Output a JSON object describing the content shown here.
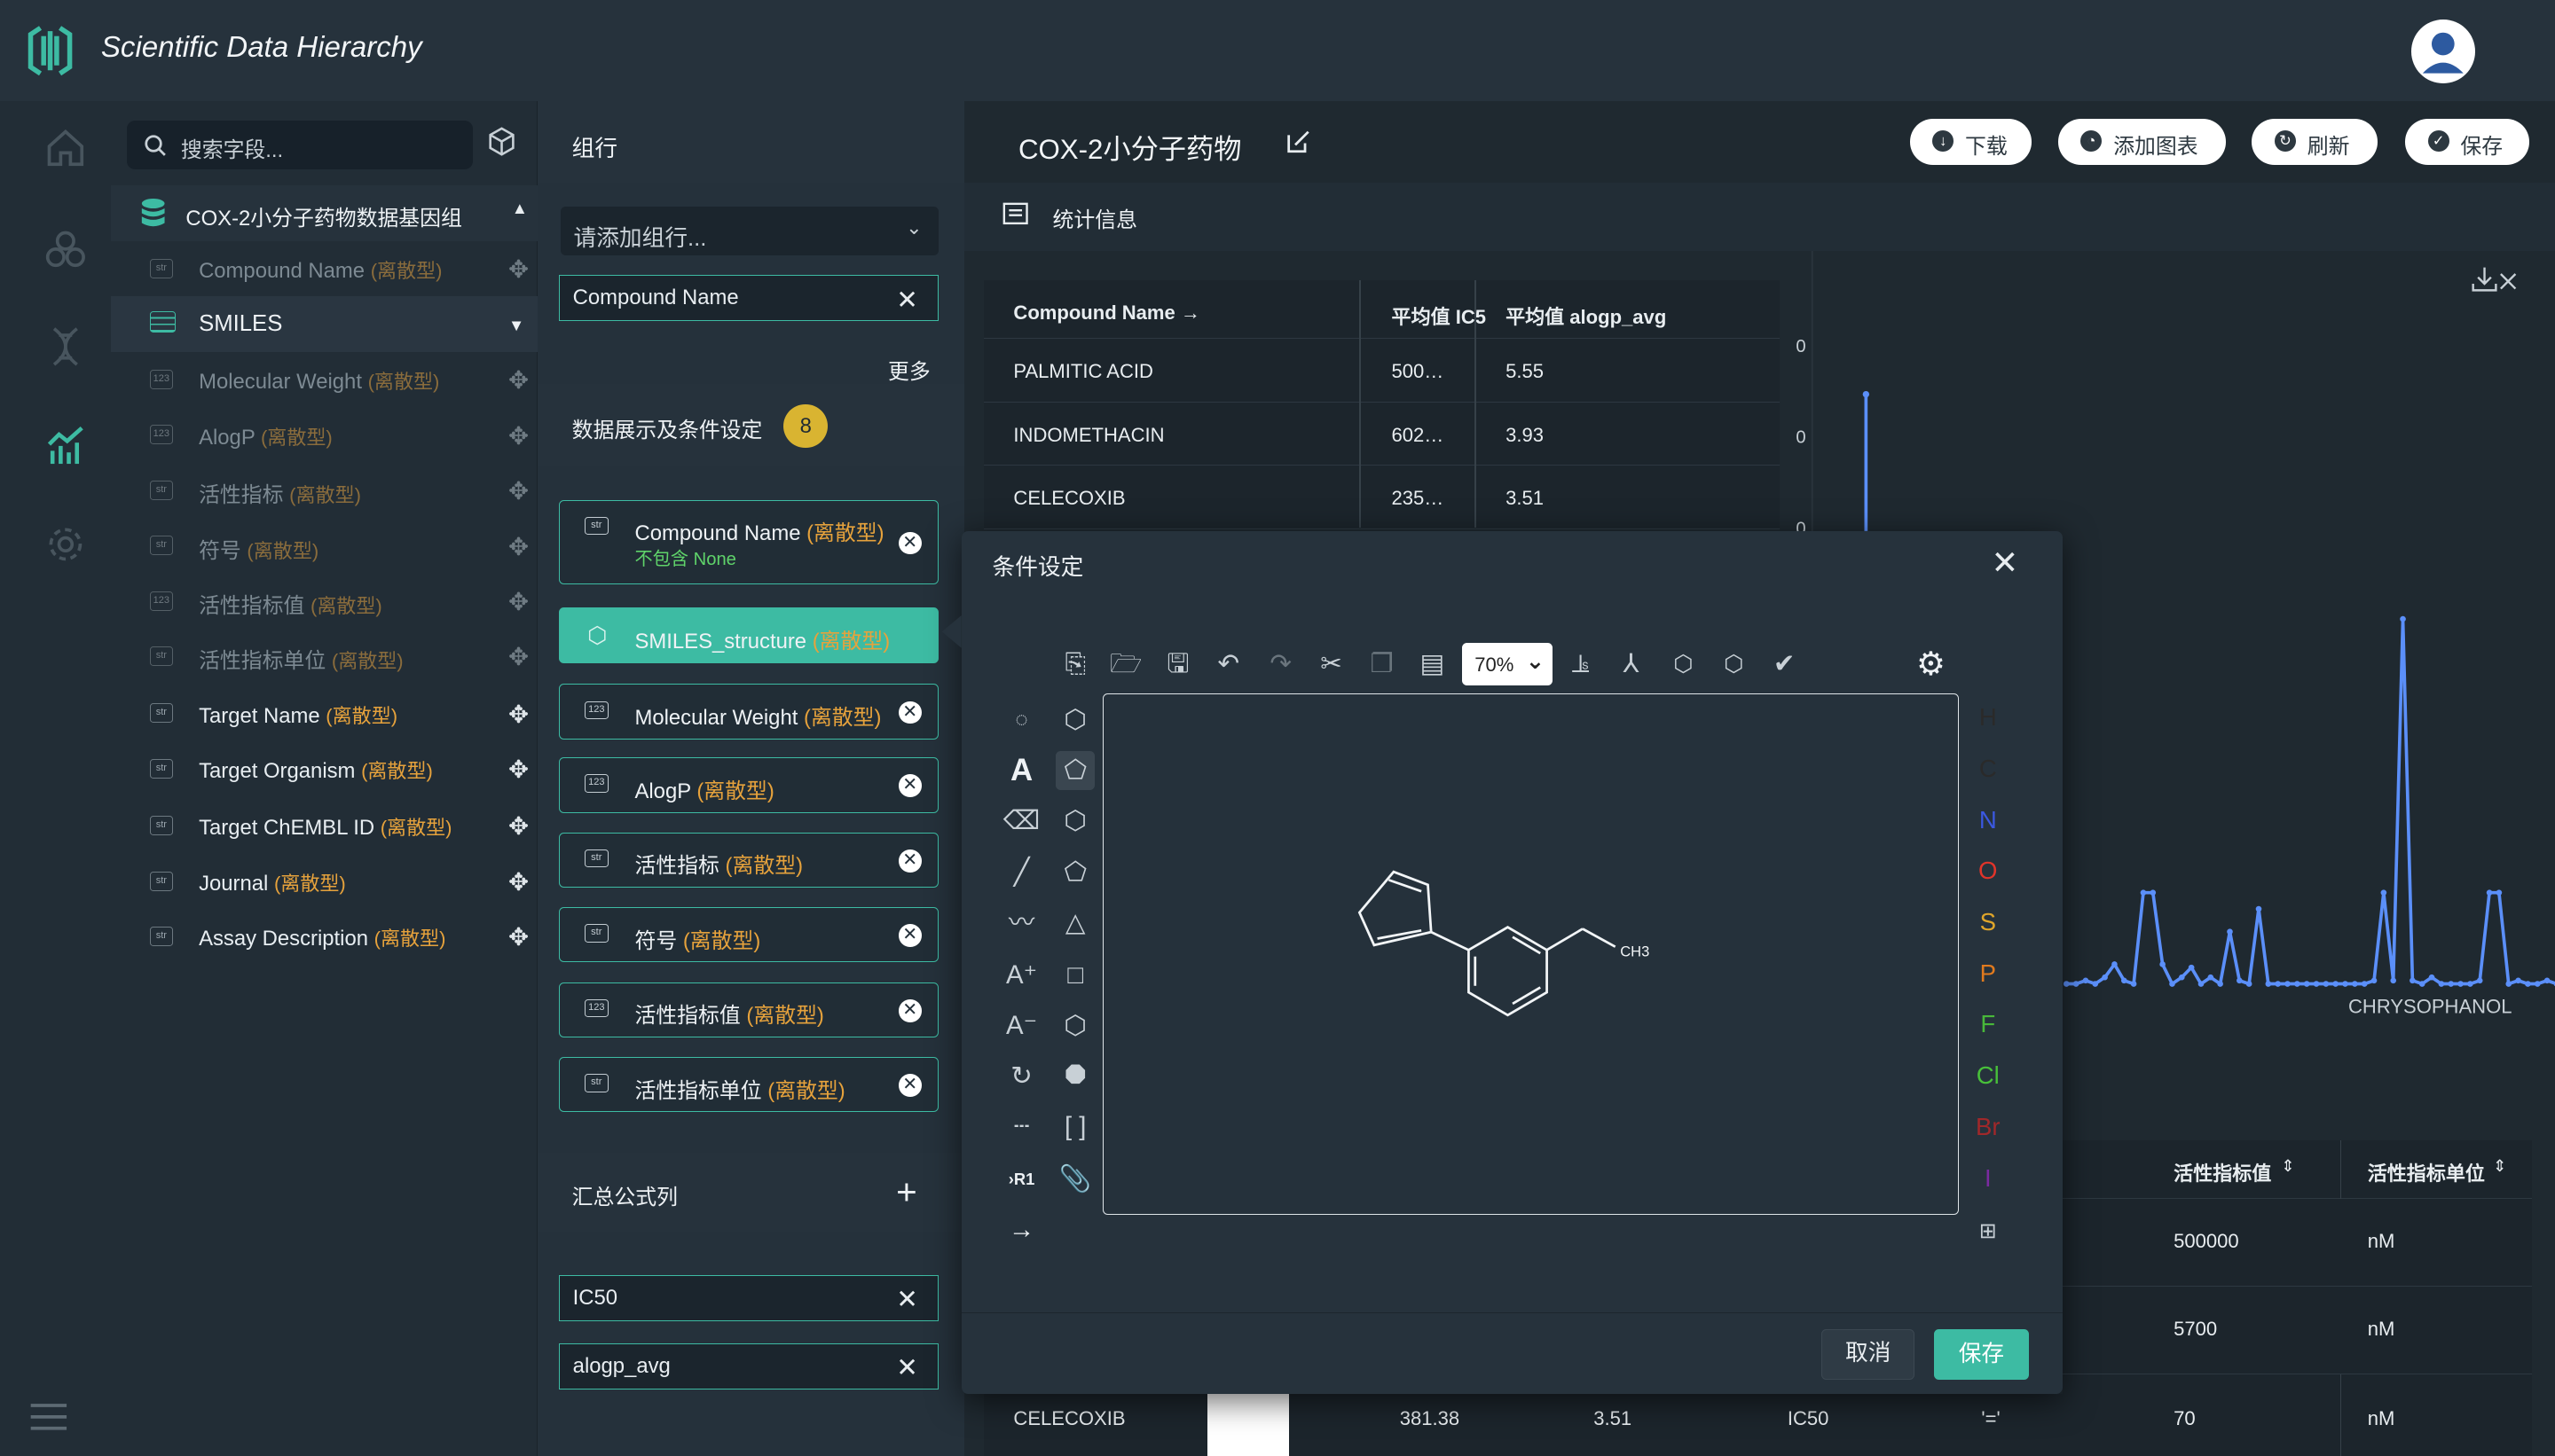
{
  "app": {
    "title": "Scientific Data Hierarchy"
  },
  "sidebar": {
    "search_placeholder": "搜索字段...",
    "dataset": "COX-2小分子药物数据基因组",
    "fields": [
      {
        "label": "Compound Name",
        "tag": "(离散型)",
        "type": "str",
        "state": "dim"
      },
      {
        "label": "SMILES",
        "tag": "",
        "type": "table",
        "state": "selected"
      },
      {
        "label": "Molecular Weight",
        "tag": "(离散型)",
        "type": "123",
        "state": "dim"
      },
      {
        "label": "AlogP",
        "tag": "(离散型)",
        "type": "123",
        "state": "dim"
      },
      {
        "label": "活性指标",
        "tag": "(离散型)",
        "type": "str",
        "state": "dim"
      },
      {
        "label": "符号",
        "tag": "(离散型)",
        "type": "str",
        "state": "dim"
      },
      {
        "label": "活性指标值",
        "tag": "(离散型)",
        "type": "123",
        "state": "dim"
      },
      {
        "label": "活性指标单位",
        "tag": "(离散型)",
        "type": "str",
        "state": "dim"
      },
      {
        "label": "Target Name",
        "tag": "(离散型)",
        "type": "str",
        "state": "bright"
      },
      {
        "label": "Target Organism",
        "tag": "(离散型)",
        "type": "str",
        "state": "bright"
      },
      {
        "label": "Target ChEMBL ID",
        "tag": "(离散型)",
        "type": "str",
        "state": "bright"
      },
      {
        "label": "Journal",
        "tag": "(离散型)",
        "type": "str",
        "state": "bright"
      },
      {
        "label": "Assay Description",
        "tag": "(离散型)",
        "type": "str",
        "state": "bright"
      }
    ]
  },
  "group": {
    "title": "组行",
    "select_placeholder": "请添加组行...",
    "selected": "Compound Name",
    "more": "更多",
    "cond_title": "数据展示及条件设定",
    "cond_count": "8",
    "conditions": [
      {
        "label": "Compound Name",
        "tag": "(离散型)",
        "sub": "不包含 None",
        "type": "str"
      },
      {
        "label": "SMILES_structure",
        "tag": "(离散型)",
        "type": "hex",
        "active": true
      },
      {
        "label": "Molecular Weight",
        "tag": "(离散型)",
        "type": "123"
      },
      {
        "label": "AlogP",
        "tag": "(离散型)",
        "type": "123"
      },
      {
        "label": "活性指标",
        "tag": "(离散型)",
        "type": "str"
      },
      {
        "label": "符号",
        "tag": "(离散型)",
        "type": "str"
      },
      {
        "label": "活性指标值",
        "tag": "(离散型)",
        "type": "123"
      },
      {
        "label": "活性指标单位",
        "tag": "(离散型)",
        "type": "str"
      }
    ],
    "formula_title": "汇总公式列",
    "formulas": [
      "IC50",
      "alogp_avg"
    ]
  },
  "main": {
    "title": "COX-2小分子药物",
    "buttons": [
      "下载",
      "添加图表",
      "刷新",
      "保存"
    ],
    "stats_label": "统计信息",
    "summary": {
      "headers": [
        "Compound Name →",
        "平均值 IC5",
        "平均值 alogp_avg"
      ],
      "rows": [
        [
          "PALMITIC ACID",
          "500…",
          "5.55"
        ],
        [
          "INDOMETHACIN",
          "602…",
          "3.93"
        ],
        [
          "CELECOXIB",
          "235…",
          "3.51"
        ]
      ]
    },
    "chart": {
      "y_ticks": [
        "0",
        "0",
        "0"
      ],
      "x_label": "CHRYSOPHANOL",
      "color": "#5b8ff9"
    },
    "table": {
      "headers": [
        "活性指标值",
        "活性指标单位"
      ],
      "rows": [
        [
          "500000",
          "nM"
        ],
        [
          "5700",
          "nM"
        ],
        [
          "70",
          "nM"
        ]
      ],
      "last_row": [
        "CELECOXIB",
        "381.38",
        "3.51",
        "IC50",
        "'='"
      ]
    }
  },
  "modal": {
    "title": "条件设定",
    "zoom": "70%",
    "cancel": "取消",
    "save": "保存",
    "elements": [
      {
        "s": "H",
        "c": "#2a2a2a"
      },
      {
        "s": "C",
        "c": "#2a2a2a"
      },
      {
        "s": "N",
        "c": "#3b58e0"
      },
      {
        "s": "O",
        "c": "#e0342a"
      },
      {
        "s": "S",
        "c": "#e0a62a"
      },
      {
        "s": "P",
        "c": "#e07a1e"
      },
      {
        "s": "F",
        "c": "#48b83a"
      },
      {
        "s": "Cl",
        "c": "#48c03a"
      },
      {
        "s": "Br",
        "c": "#a0282a"
      },
      {
        "s": "I",
        "c": "#7a2aa0"
      }
    ],
    "molecule_label": "CH3"
  }
}
